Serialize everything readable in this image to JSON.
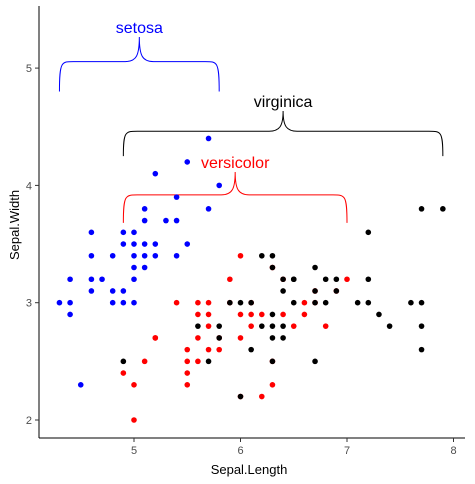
{
  "chart_data": {
    "type": "scatter",
    "xlabel": "Sepal.Length",
    "ylabel": "Sepal.Width",
    "xlim": [
      4.2,
      8.05
    ],
    "ylim": [
      1.9,
      5.5
    ],
    "x_ticks": [
      5,
      6,
      7,
      8
    ],
    "y_ticks": [
      2,
      3,
      4,
      5
    ],
    "grid": false,
    "series": [
      {
        "name": "setosa",
        "color": "#0000ff",
        "points": [
          [
            4.3,
            3.0
          ],
          [
            4.4,
            2.9
          ],
          [
            4.4,
            3.0
          ],
          [
            4.4,
            3.2
          ],
          [
            4.5,
            2.3
          ],
          [
            4.6,
            3.1
          ],
          [
            4.6,
            3.2
          ],
          [
            4.6,
            3.4
          ],
          [
            4.6,
            3.6
          ],
          [
            4.7,
            3.2
          ],
          [
            4.8,
            3.0
          ],
          [
            4.8,
            3.1
          ],
          [
            4.8,
            3.4
          ],
          [
            4.9,
            3.0
          ],
          [
            4.9,
            3.1
          ],
          [
            4.9,
            3.6
          ],
          [
            5.0,
            3.0
          ],
          [
            5.0,
            3.2
          ],
          [
            5.0,
            3.3
          ],
          [
            5.0,
            3.4
          ],
          [
            5.0,
            3.5
          ],
          [
            5.0,
            3.6
          ],
          [
            5.1,
            3.3
          ],
          [
            5.1,
            3.4
          ],
          [
            5.1,
            3.5
          ],
          [
            5.1,
            3.7
          ],
          [
            5.1,
            3.8
          ],
          [
            5.2,
            3.4
          ],
          [
            5.2,
            3.5
          ],
          [
            5.2,
            4.1
          ],
          [
            5.3,
            3.7
          ],
          [
            5.4,
            3.4
          ],
          [
            5.4,
            3.7
          ],
          [
            5.4,
            3.9
          ],
          [
            5.5,
            3.5
          ],
          [
            5.5,
            4.2
          ],
          [
            5.7,
            3.8
          ],
          [
            5.7,
            4.4
          ],
          [
            5.8,
            4.0
          ],
          [
            4.9,
            3.5
          ]
        ]
      },
      {
        "name": "versicolor",
        "color": "#ff0000",
        "points": [
          [
            4.9,
            2.4
          ],
          [
            5.0,
            2.0
          ],
          [
            5.0,
            2.3
          ],
          [
            5.1,
            2.5
          ],
          [
            5.2,
            2.7
          ],
          [
            5.4,
            3.0
          ],
          [
            5.5,
            2.3
          ],
          [
            5.5,
            2.4
          ],
          [
            5.5,
            2.5
          ],
          [
            5.5,
            2.6
          ],
          [
            5.6,
            2.5
          ],
          [
            5.6,
            2.7
          ],
          [
            5.6,
            2.9
          ],
          [
            5.6,
            3.0
          ],
          [
            5.7,
            2.6
          ],
          [
            5.7,
            2.8
          ],
          [
            5.7,
            2.9
          ],
          [
            5.7,
            3.0
          ],
          [
            5.8,
            2.6
          ],
          [
            5.8,
            2.7
          ],
          [
            5.9,
            3.0
          ],
          [
            5.9,
            3.2
          ],
          [
            6.0,
            2.2
          ],
          [
            6.0,
            2.7
          ],
          [
            6.0,
            2.9
          ],
          [
            6.0,
            3.4
          ],
          [
            6.1,
            2.8
          ],
          [
            6.1,
            2.9
          ],
          [
            6.1,
            3.0
          ],
          [
            6.2,
            2.2
          ],
          [
            6.2,
            2.9
          ],
          [
            6.3,
            2.3
          ],
          [
            6.3,
            2.5
          ],
          [
            6.3,
            3.3
          ],
          [
            6.4,
            2.9
          ],
          [
            6.4,
            3.2
          ],
          [
            6.6,
            2.9
          ],
          [
            6.6,
            3.0
          ],
          [
            6.7,
            3.0
          ],
          [
            6.7,
            3.1
          ],
          [
            6.8,
            2.8
          ],
          [
            6.9,
            3.1
          ],
          [
            7.0,
            3.2
          ],
          [
            6.5,
            2.8
          ],
          [
            5.2,
            2.7
          ]
        ]
      },
      {
        "name": "virginica",
        "color": "#000000",
        "points": [
          [
            4.9,
            2.5
          ],
          [
            5.6,
            2.8
          ],
          [
            5.7,
            2.5
          ],
          [
            5.8,
            2.7
          ],
          [
            5.8,
            2.8
          ],
          [
            5.9,
            3.0
          ],
          [
            6.0,
            2.2
          ],
          [
            6.0,
            3.0
          ],
          [
            6.1,
            2.6
          ],
          [
            6.1,
            3.0
          ],
          [
            6.2,
            2.8
          ],
          [
            6.2,
            3.4
          ],
          [
            6.3,
            2.5
          ],
          [
            6.3,
            2.7
          ],
          [
            6.3,
            2.8
          ],
          [
            6.3,
            2.9
          ],
          [
            6.3,
            3.3
          ],
          [
            6.3,
            3.4
          ],
          [
            6.4,
            2.7
          ],
          [
            6.4,
            2.8
          ],
          [
            6.4,
            3.1
          ],
          [
            6.4,
            3.2
          ],
          [
            6.5,
            3.0
          ],
          [
            6.5,
            3.2
          ],
          [
            6.7,
            2.5
          ],
          [
            6.7,
            3.0
          ],
          [
            6.7,
            3.1
          ],
          [
            6.7,
            3.3
          ],
          [
            6.8,
            3.0
          ],
          [
            6.8,
            3.2
          ],
          [
            6.9,
            3.1
          ],
          [
            6.9,
            3.2
          ],
          [
            7.1,
            3.0
          ],
          [
            7.2,
            3.0
          ],
          [
            7.2,
            3.2
          ],
          [
            7.2,
            3.6
          ],
          [
            7.3,
            2.9
          ],
          [
            7.4,
            2.8
          ],
          [
            7.6,
            3.0
          ],
          [
            7.7,
            2.6
          ],
          [
            7.7,
            2.8
          ],
          [
            7.7,
            3.0
          ],
          [
            7.7,
            3.8
          ],
          [
            7.9,
            3.8
          ],
          [
            6.5,
            3.2
          ]
        ]
      }
    ],
    "annotations": [
      {
        "text": "setosa",
        "color": "#0000ff",
        "x_range": [
          4.3,
          5.8
        ],
        "y": 4.8,
        "label_y": 5.35
      },
      {
        "text": "virginica",
        "color": "#000000",
        "x_range": [
          4.9,
          7.9
        ],
        "y": 4.25,
        "label_y": 4.72
      },
      {
        "text": "versicolor",
        "color": "#ff0000",
        "x_range": [
          4.9,
          7.0
        ],
        "y": 3.68,
        "label_y": 4.2
      }
    ]
  }
}
